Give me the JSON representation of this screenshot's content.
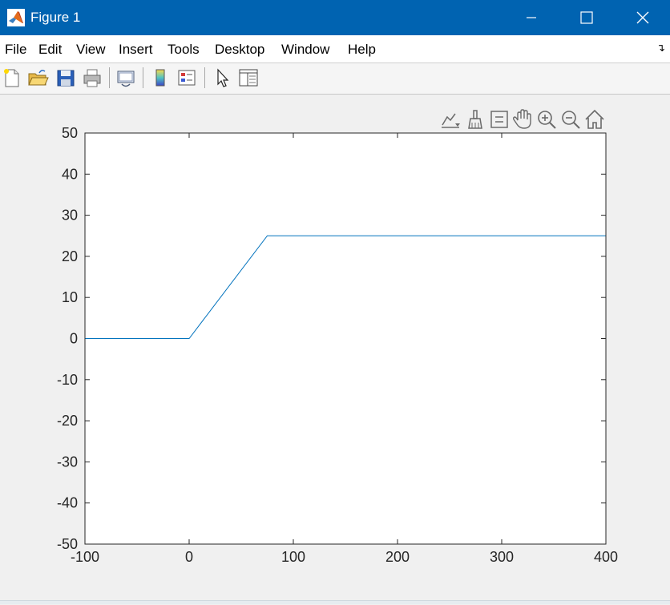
{
  "window": {
    "title": "Figure 1",
    "title_bar_color": "#0063b1"
  },
  "menu": {
    "items": [
      "File",
      "Edit",
      "View",
      "Insert",
      "Tools",
      "Desktop",
      "Window",
      "Help"
    ],
    "dock_arrow": "↴"
  },
  "toolbar": {
    "icons": [
      "new-figure-icon",
      "open-file-icon",
      "save-icon",
      "print-icon",
      "link-plot-icon",
      "colorbar-icon",
      "legend-icon",
      "pointer-icon",
      "property-inspector-icon"
    ]
  },
  "axes_toolbar": {
    "icons": [
      "brush-export-icon",
      "data-brush-icon",
      "data-tips-icon",
      "pan-icon",
      "zoom-in-icon",
      "zoom-out-icon",
      "home-icon"
    ]
  },
  "chart_data": {
    "type": "line",
    "title": "",
    "xlabel": "",
    "ylabel": "",
    "xlim": [
      -100,
      400
    ],
    "ylim": [
      -50,
      50
    ],
    "x_ticks": [
      -100,
      0,
      100,
      200,
      300,
      400
    ],
    "y_ticks": [
      -50,
      -40,
      -30,
      -20,
      -10,
      0,
      10,
      20,
      30,
      40,
      50
    ],
    "x_tick_labels": [
      "-100",
      "0",
      "100",
      "200",
      "300",
      "400"
    ],
    "y_tick_labels": [
      "-50",
      "-40",
      "-30",
      "-20",
      "-10",
      "0",
      "10",
      "20",
      "30",
      "40",
      "50"
    ],
    "grid": false,
    "series": [
      {
        "color": "#0072bd",
        "x": [
          -100,
          0,
          75,
          400
        ],
        "y": [
          0,
          0,
          25,
          25
        ]
      }
    ]
  }
}
